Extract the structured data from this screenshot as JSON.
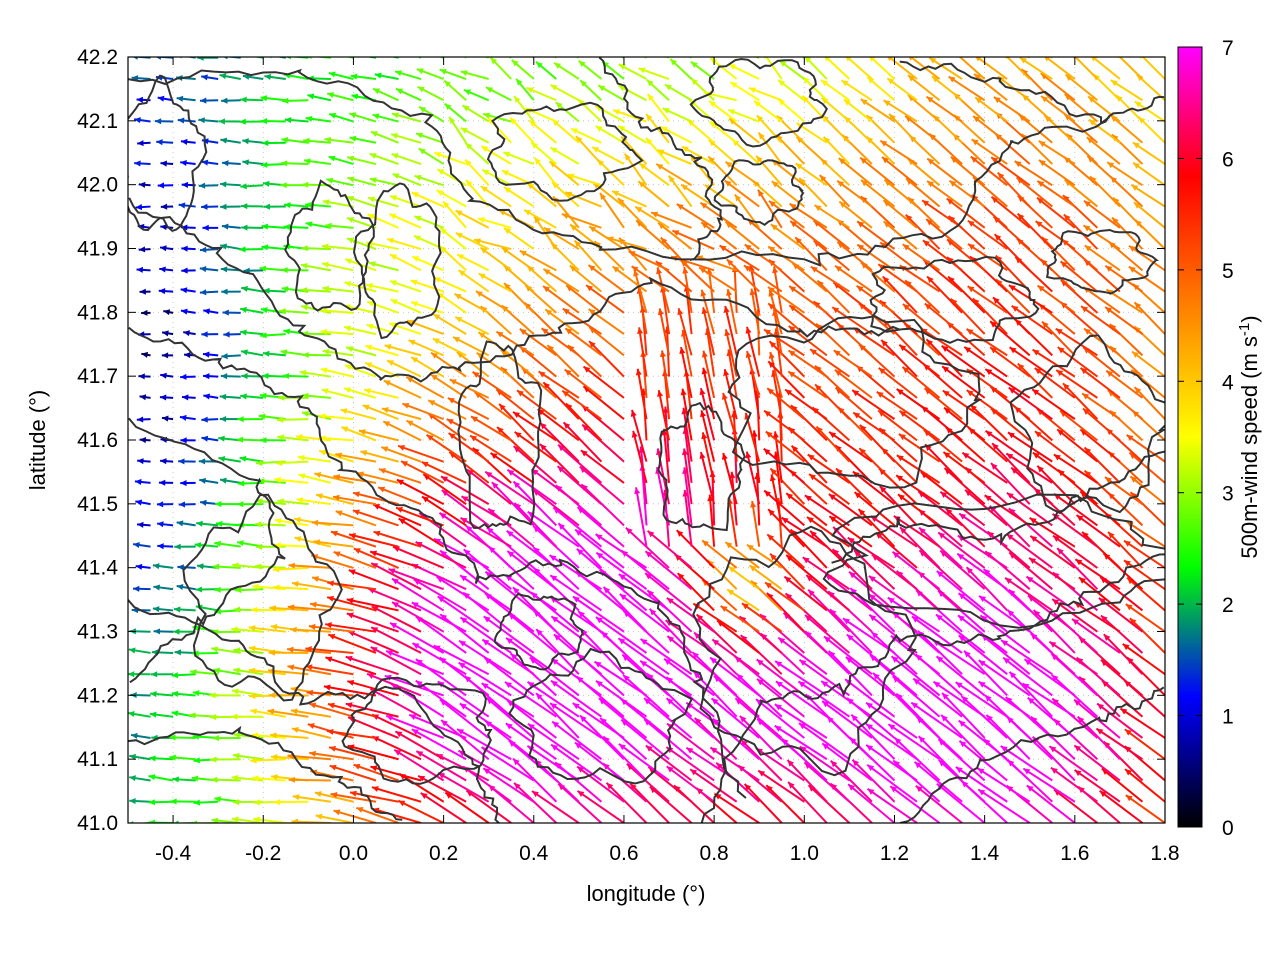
{
  "chart_data": {
    "type": "vector-field",
    "xlabel": "longitude (°)",
    "ylabel": "latitude (°)",
    "xlim": [
      -0.5,
      1.8
    ],
    "ylim": [
      41.0,
      42.2
    ],
    "xticks": [
      "-0.4",
      "-0.2",
      "0.0",
      "0.2",
      "0.4",
      "0.6",
      "0.8",
      "1.0",
      "1.2",
      "1.4",
      "1.6",
      "1.8"
    ],
    "yticks": [
      "41.0",
      "41.1",
      "41.2",
      "41.3",
      "41.4",
      "41.5",
      "41.6",
      "41.7",
      "41.8",
      "41.9",
      "42.0",
      "42.1",
      "42.2"
    ],
    "colorbar": {
      "label": "500m-wind speed (m s",
      "label_sup": "-1",
      "label_end": ")",
      "range": [
        0,
        7
      ],
      "ticks": [
        "0",
        "1",
        "2",
        "3",
        "4",
        "5",
        "6",
        "7"
      ],
      "stops": [
        "#000000",
        "#0000ff",
        "#00ff00",
        "#ffff00",
        "#ff8000",
        "#ff0000",
        "#ff00ff"
      ]
    },
    "contours": "terrain elevation isolines (dark gray)",
    "wind_regions": [
      {
        "region": "west / north-west",
        "speed_ms": [
          0.5,
          2.5
        ],
        "direction": "westward"
      },
      {
        "region": "north-central",
        "speed_ms": [
          2,
          4
        ],
        "direction": "north-west"
      },
      {
        "region": "south-central plain",
        "speed_ms": [
          6.5,
          7
        ],
        "direction": "north-west"
      },
      {
        "region": "east",
        "speed_ms": [
          5,
          7
        ],
        "direction": "north-west"
      }
    ]
  }
}
